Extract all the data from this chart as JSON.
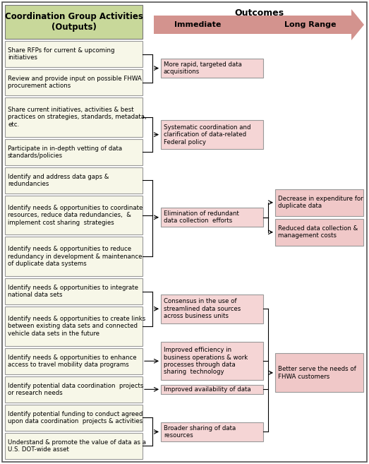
{
  "fig_width": 5.23,
  "fig_height": 6.57,
  "dpi": 100,
  "bg_color": "#ffffff",
  "title_text": "Outcomes",
  "arrow_color": "#c87872",
  "arrow_label_immediate": "Immediate",
  "arrow_label_longrange": "Long Range",
  "header_box": {
    "text": "Coordination Group Activities\n(Outputs)",
    "facecolor": "#c8d89a",
    "edgecolor": "#777777",
    "fontsize": 8.5,
    "fontweight": "bold"
  },
  "left_box_facecolor": "#f7f7e8",
  "left_box_edgecolor": "#999999",
  "mid_box_facecolor": "#f5d5d5",
  "mid_box_edgecolor": "#999999",
  "right_box_facecolor": "#f0c8c8",
  "right_box_edgecolor": "#999999",
  "left_boxes": [
    "Share RFPs for current & upcoming\ninitiatives",
    "Review and provide input on possible FHWA\nprocurement actions",
    "Share current initiatives, activities & best\npractices on strategies, standards, metadata,\netc.",
    "Participate in in-depth vetting of data\nstandards/policies",
    "Identify and address data gaps &\nredundancies",
    "Identify needs & opportunities to coordinate\nresources, reduce data redundancies,  &\nimplement cost sharing  strategies",
    "Identify needs & opportunities to reduce\nredundancy in development & maintenance\nof duplicate data systems",
    "Identify needs & opportunities to integrate\nnational data sets",
    "Identify needs & opportunities to create links\nbetween existing data sets and connected\nvehicle data sets in the future",
    "Identify needs & opportunities to enhance\naccess to travel mobility data programs",
    "Identify potential data coordination  projects\nor research needs",
    "Identify potential funding to conduct agreed\nupon data coordination  projects & activities",
    "Understand & promote the value of data as a\nU.S. DOT-wide asset"
  ],
  "mid_boxes": [
    {
      "text": "More rapid, targeted data\nacquisitions",
      "sources": [
        0,
        1
      ]
    },
    {
      "text": "Systematic coordination and\nclarification of data-related\nFederal policy",
      "sources": [
        2,
        3
      ]
    },
    {
      "text": "Elimination of redundant\ndata collection  efforts",
      "sources": [
        4,
        5,
        6
      ]
    },
    {
      "text": "Consensus in the use of\nstreamlined data sources\nacross business units",
      "sources": [
        7,
        8
      ]
    },
    {
      "text": "Improved efficiency in\nbusiness operations & work\nprocesses through data\nsharing  technology",
      "sources": [
        9
      ]
    },
    {
      "text": "Improved availability of data",
      "sources": [
        10
      ]
    },
    {
      "text": "Broader sharing of data\nresources",
      "sources": [
        11,
        12
      ]
    }
  ],
  "right_boxes": [
    {
      "text": "Decrease in expenditure for\nduplicate data",
      "mid_sources": [
        2
      ]
    },
    {
      "text": "Reduced data collection &\nmanagement costs",
      "mid_sources": [
        2
      ]
    },
    {
      "text": "Better serve the needs of\nFHWA customers",
      "mid_sources": [
        3,
        4,
        5,
        6
      ]
    }
  ]
}
